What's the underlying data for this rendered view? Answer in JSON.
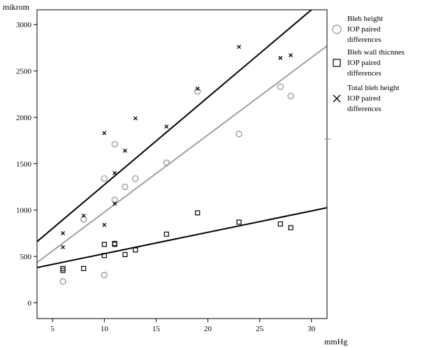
{
  "chart_data": {
    "type": "scatter",
    "xlabel": "mmHg",
    "ylabel": "mikrom",
    "xlim": [
      3.5,
      31.5
    ],
    "ylim": [
      -170,
      3160
    ],
    "x_ticks": [
      5,
      10,
      15,
      20,
      25,
      30
    ],
    "y_ticks": [
      0,
      500,
      1000,
      1500,
      2000,
      2500,
      3000
    ],
    "grid": false,
    "legend_position": "right",
    "series": [
      {
        "name": "Bleb height IOP paired differences",
        "legend_lines": [
          "Bleb height",
          "IOP paired",
          "differences"
        ],
        "marker": "circle",
        "color": "#8c8c8c",
        "points": [
          [
            6,
            230
          ],
          [
            8,
            900
          ],
          [
            10,
            300
          ],
          [
            10,
            1340
          ],
          [
            11,
            1710
          ],
          [
            11,
            1110
          ],
          [
            12,
            1250
          ],
          [
            13,
            1340
          ],
          [
            16,
            1510
          ],
          [
            19,
            2280
          ],
          [
            23,
            1820
          ],
          [
            27,
            2330
          ],
          [
            28,
            2230
          ]
        ],
        "fit": [
          [
            3.5,
            435
          ],
          [
            31.5,
            2770
          ]
        ]
      },
      {
        "name": "Bleb wall thicnnes IOP paired differences",
        "legend_lines": [
          "Bleb wall thicnnes",
          "IOP paired",
          "differences"
        ],
        "marker": "square",
        "color": "#000000",
        "points": [
          [
            6,
            350
          ],
          [
            6,
            370
          ],
          [
            8,
            370
          ],
          [
            10,
            510
          ],
          [
            10,
            630
          ],
          [
            11,
            640
          ],
          [
            11,
            630
          ],
          [
            12,
            520
          ],
          [
            13,
            570
          ],
          [
            16,
            740
          ],
          [
            19,
            970
          ],
          [
            23,
            870
          ],
          [
            27,
            850
          ],
          [
            28,
            810
          ]
        ],
        "fit": [
          [
            3.5,
            380
          ],
          [
            31.5,
            1025
          ]
        ]
      },
      {
        "name": "Total bleb height IOP paired differences",
        "legend_lines": [
          "Total bleb height",
          "IOP paired",
          "differences"
        ],
        "marker": "x",
        "color": "#000000",
        "points": [
          [
            6,
            750
          ],
          [
            6,
            600
          ],
          [
            8,
            940
          ],
          [
            10,
            1830
          ],
          [
            10,
            840
          ],
          [
            11,
            1400
          ],
          [
            11,
            1070
          ],
          [
            12,
            1640
          ],
          [
            13,
            1990
          ],
          [
            16,
            1900
          ],
          [
            19,
            2310
          ],
          [
            23,
            2760
          ],
          [
            27,
            2640
          ],
          [
            28,
            2670
          ]
        ],
        "fit": [
          [
            3.5,
            660
          ],
          [
            30,
            3160
          ]
        ]
      }
    ]
  }
}
